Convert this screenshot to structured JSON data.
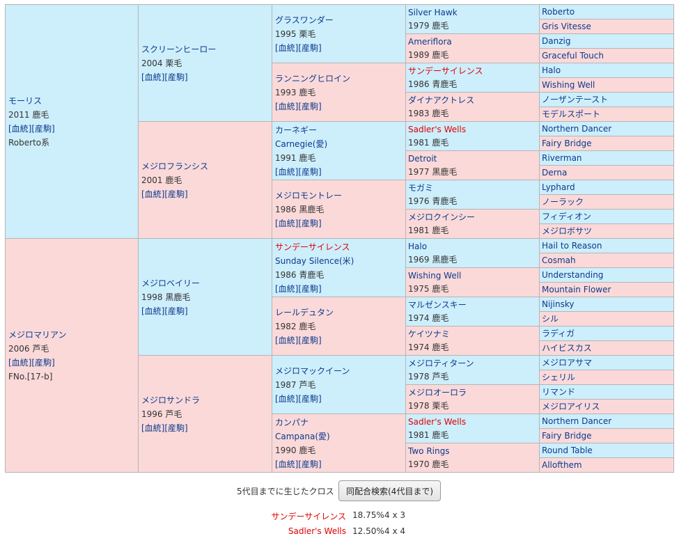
{
  "links": {
    "bloodline": "[血統]",
    "produce": "[産駒]"
  },
  "gen1": [
    {
      "name": "モーリス",
      "year_color": "2011 鹿毛",
      "extra": "Roberto系"
    },
    {
      "name": "メジロマリアン",
      "year_color": "2006 芦毛",
      "extra": "FNo.[17-b]"
    }
  ],
  "gen2": [
    {
      "name": "スクリーンヒーロー",
      "year_color": "2004 栗毛"
    },
    {
      "name": "メジロフランシス",
      "year_color": "2001 鹿毛"
    },
    {
      "name": "メジロベイリー",
      "year_color": "1998 黒鹿毛"
    },
    {
      "name": "メジロサンドラ",
      "year_color": "1996 芦毛"
    }
  ],
  "gen3": [
    {
      "name": "グラスワンダー",
      "alt": "",
      "year_color": "1995 栗毛"
    },
    {
      "name": "ランニングヒロイン",
      "alt": "",
      "year_color": "1993 鹿毛"
    },
    {
      "name": "カーネギー",
      "alt": "Carnegie(愛)",
      "year_color": "1991 鹿毛"
    },
    {
      "name": "メジロモントレー",
      "alt": "",
      "year_color": "1986 黒鹿毛"
    },
    {
      "name": "サンデーサイレンス",
      "alt": "Sunday Silence(米)",
      "year_color": "1986 青鹿毛"
    },
    {
      "name": "レールデュタン",
      "alt": "",
      "year_color": "1982 鹿毛"
    },
    {
      "name": "メジロマックイーン",
      "alt": "",
      "year_color": "1987 芦毛"
    },
    {
      "name": "カンパナ",
      "alt": "Campana(愛)",
      "year_color": "1990 鹿毛"
    }
  ],
  "gen4": [
    {
      "name": "Silver Hawk",
      "year_color": "1979 鹿毛"
    },
    {
      "name": "Ameriflora",
      "year_color": "1989 鹿毛"
    },
    {
      "name": "サンデーサイレンス",
      "year_color": "1986 青鹿毛"
    },
    {
      "name": "ダイナアクトレス",
      "year_color": "1983 鹿毛"
    },
    {
      "name": "Sadler's Wells",
      "year_color": "1981 鹿毛"
    },
    {
      "name": "Detroit",
      "year_color": "1977 黒鹿毛"
    },
    {
      "name": "モガミ",
      "year_color": "1976 青鹿毛"
    },
    {
      "name": "メジロクインシー",
      "year_color": "1981 鹿毛"
    },
    {
      "name": "Halo",
      "year_color": "1969 黒鹿毛"
    },
    {
      "name": "Wishing Well",
      "year_color": "1975 鹿毛"
    },
    {
      "name": "マルゼンスキー",
      "year_color": "1974 鹿毛"
    },
    {
      "name": "ケイツナミ",
      "year_color": "1974 鹿毛"
    },
    {
      "name": "メジロティターン",
      "year_color": "1978 芦毛"
    },
    {
      "name": "メジロオーロラ",
      "year_color": "1978 栗毛"
    },
    {
      "name": "Sadler's Wells",
      "year_color": "1981 鹿毛"
    },
    {
      "name": "Two Rings",
      "year_color": "1970 鹿毛"
    }
  ],
  "gen5": [
    "Roberto",
    "Gris Vitesse",
    "Danzig",
    "Graceful Touch",
    "Halo",
    "Wishing Well",
    "ノーザンテースト",
    "モデルスポート",
    "Northern Dancer",
    "Fairy Bridge",
    "Riverman",
    "Derna",
    "Lyphard",
    "ノーラック",
    "フィディオン",
    "メジロボサツ",
    "Hail to Reason",
    "Cosmah",
    "Understanding",
    "Mountain Flower",
    "Nijinsky",
    "シル",
    "ラディガ",
    "ハイビスカス",
    "メジロアサマ",
    "シェリル",
    "リマンド",
    "メジロアイリス",
    "Northern Dancer",
    "Fairy Bridge",
    "Round Table",
    "Allofthem"
  ],
  "cross": {
    "label": "5代目までに生じたクロス",
    "button": "同配合検索(4代目まで)",
    "items": [
      {
        "name": "サンデーサイレンス",
        "pct": "18.75%",
        "gen": "4 x 3"
      },
      {
        "name": "Sadler's Wells",
        "pct": "12.50%",
        "gen": "4 x 4"
      }
    ]
  }
}
